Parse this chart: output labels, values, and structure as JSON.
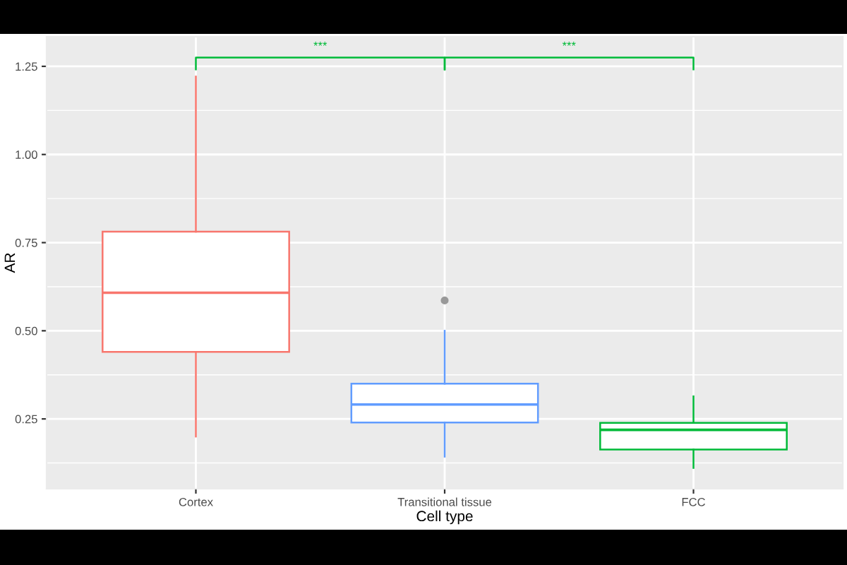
{
  "chart_data": {
    "type": "box",
    "categories": [
      "Cortex",
      "Transitional tissue",
      "FCC"
    ],
    "boxes": [
      {
        "low": 0.2,
        "q1": 0.44,
        "median": 0.608,
        "q3": 0.781,
        "high": 1.221
      },
      {
        "low": 0.143,
        "q1": 0.24,
        "median": 0.291,
        "q3": 0.35,
        "high": 0.5,
        "outliers": [
          0.586
        ]
      },
      {
        "low": 0.111,
        "q1": 0.163,
        "median": 0.219,
        "q3": 0.239,
        "high": 0.314
      }
    ],
    "colors": [
      "#f8766d",
      "#619cff",
      "#00ba38"
    ],
    "xlabel": "Cell type",
    "ylabel": "AR",
    "ylim": [
      0.052,
      1.334
    ],
    "yticks": [
      {
        "value": 0.25,
        "label": "0.25"
      },
      {
        "value": 0.5,
        "label": "0.50"
      },
      {
        "value": 0.75,
        "label": "0.75"
      },
      {
        "value": 1.0,
        "label": "1.00"
      },
      {
        "value": 1.25,
        "label": "1.25"
      }
    ],
    "grid": true,
    "annotations": [
      "***",
      "***"
    ]
  }
}
